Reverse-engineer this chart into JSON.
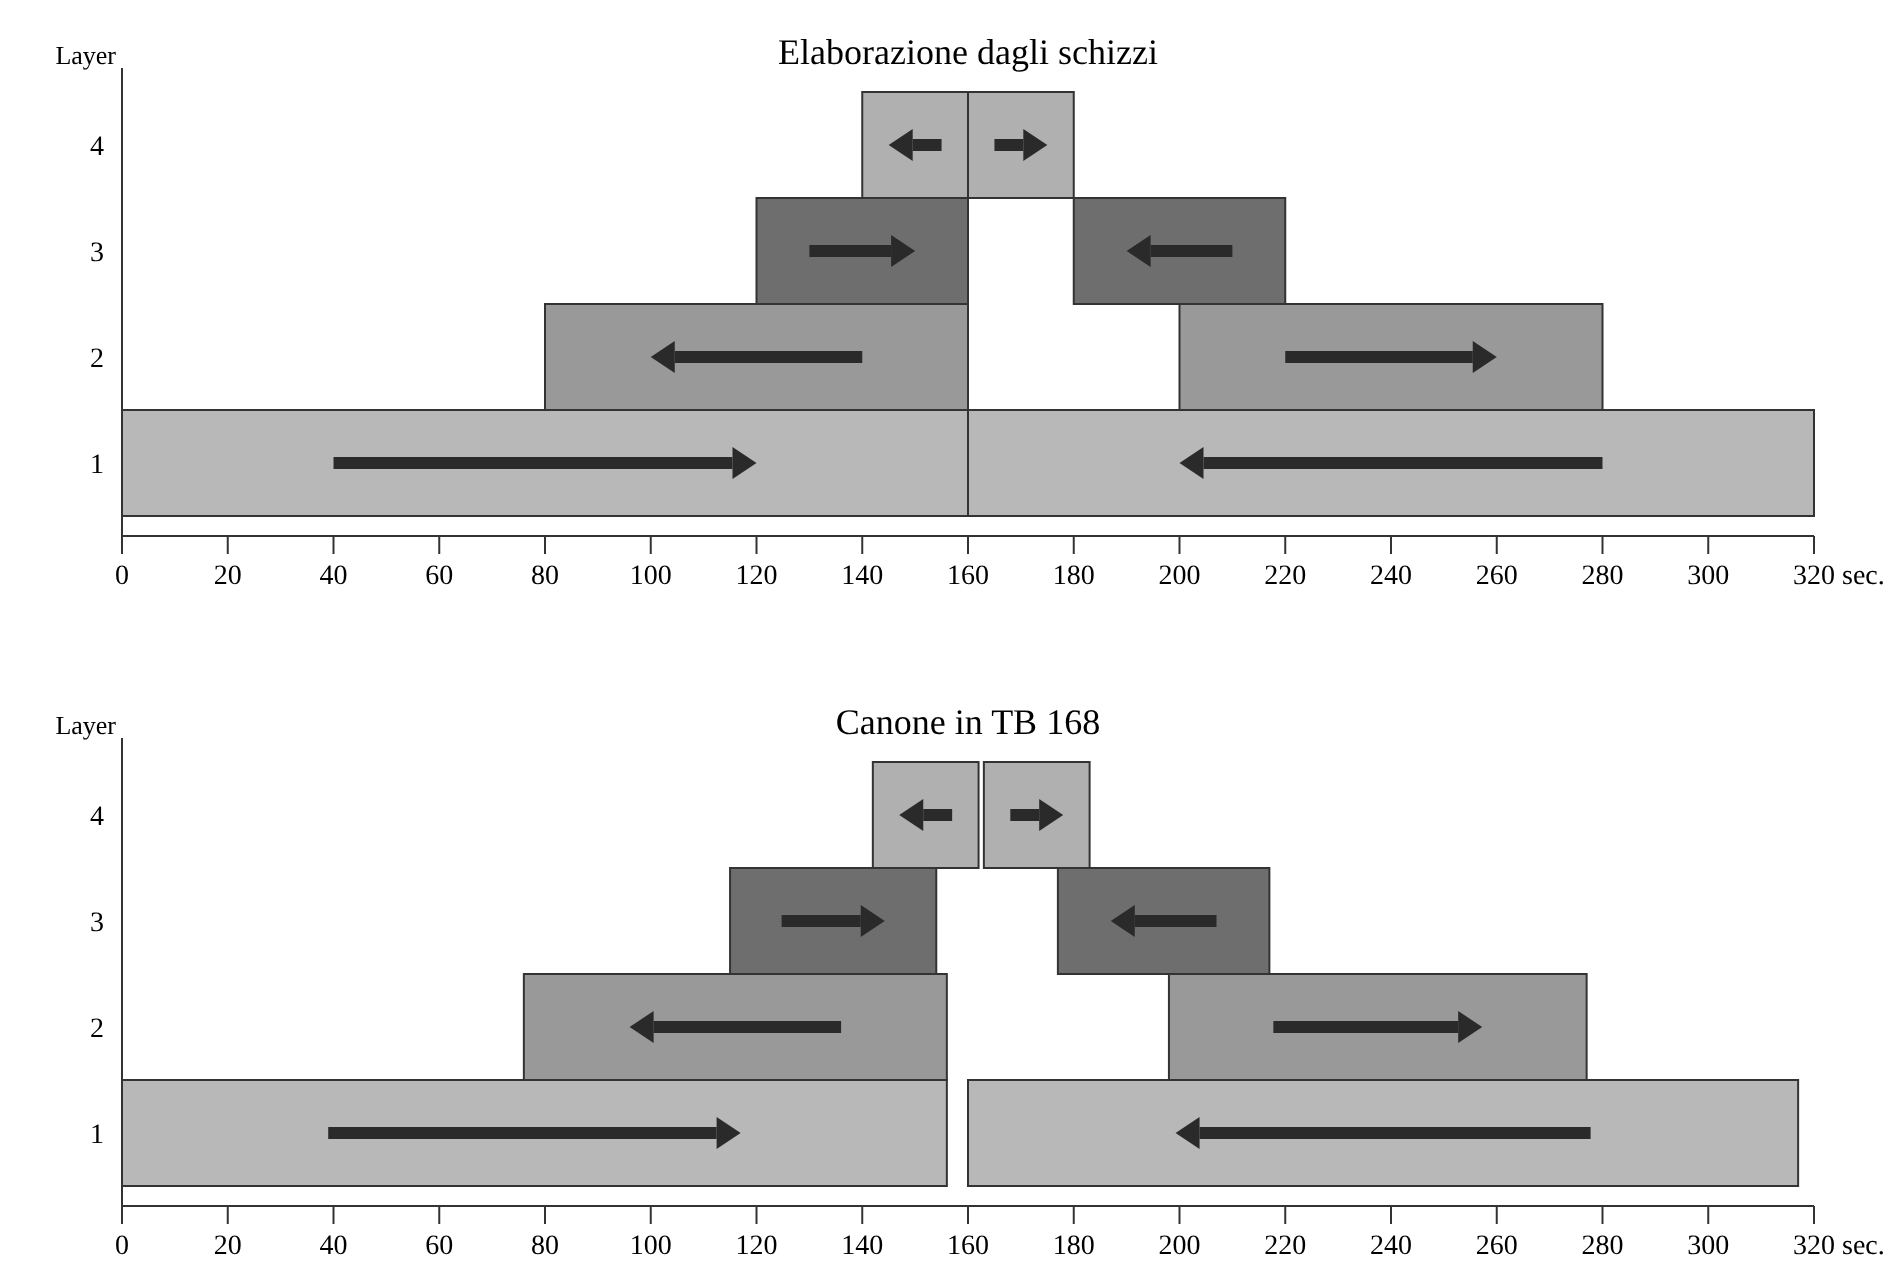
{
  "chart_data": [
    {
      "type": "bar",
      "title": "Elaborazione dagli schizzi",
      "orientation": "horizontal",
      "ylabel": "Layer",
      "xlabel": "sec.",
      "categories": [
        "4",
        "3",
        "2",
        "1"
      ],
      "series": [
        {
          "colors": [
            "#b0b0b0",
            "#6e6e6e",
            "#999999",
            "#b8b8b8"
          ],
          "base": [
            140,
            120,
            80,
            0
          ],
          "values": [
            20,
            40,
            80,
            160
          ]
        },
        {
          "colors": [
            "#b0b0b0",
            "#6e6e6e",
            "#999999",
            "#b8b8b8"
          ],
          "base": [
            160,
            180,
            200,
            160
          ],
          "values": [
            20,
            40,
            80,
            160
          ]
        }
      ],
      "xlim": [
        0,
        320
      ],
      "xticks": [
        0,
        20,
        40,
        60,
        80,
        100,
        120,
        140,
        160,
        180,
        200,
        220,
        240,
        260,
        280,
        300,
        320
      ]
    },
    {
      "type": "bar",
      "title": "Canone in TB 168",
      "orientation": "horizontal",
      "ylabel": "Layer",
      "xlabel": "sec.",
      "categories": [
        "4",
        "3",
        "2",
        "1"
      ],
      "series": [
        {
          "colors": [
            "#b0b0b0",
            "#6e6e6e",
            "#999999",
            "#b8b8b8"
          ],
          "base": [
            142,
            115,
            76,
            0
          ],
          "values": [
            20,
            39,
            80,
            156
          ]
        },
        {
          "colors": [
            "#b0b0b0",
            "#6e6e6e",
            "#999999",
            "#b8b8b8"
          ],
          "base": [
            163,
            177,
            198,
            160
          ],
          "values": [
            20,
            40,
            79,
            157
          ]
        }
      ],
      "xlim": [
        0,
        320
      ],
      "xticks": [
        0,
        20,
        40,
        60,
        80,
        100,
        120,
        140,
        160,
        180,
        200,
        220,
        240,
        260,
        280,
        300,
        320
      ]
    }
  ]
}
